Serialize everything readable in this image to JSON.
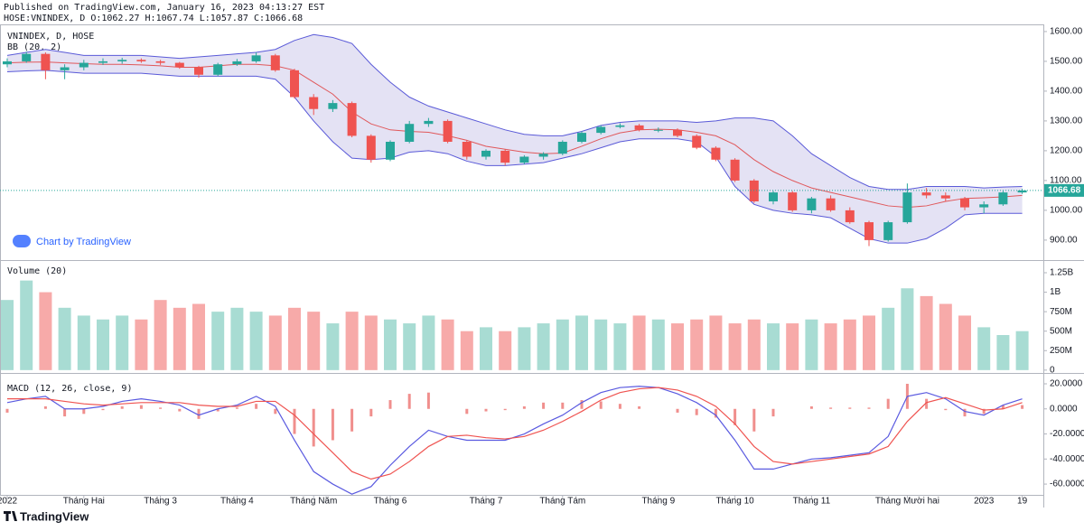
{
  "header": {
    "published": "Published on TradingView.com, January 16, 2023 04:13:27 EST",
    "symbol_line": "HOSE:VNINDEX, D  O:1062.27 H:1067.74 L:1057.87 C:1066.68"
  },
  "watermark": "Chart by TradingView",
  "brand": "TradingView",
  "chart_data": [
    {
      "type": "candlestick",
      "title": "VNINDEX, D, HOSE",
      "categories": [
        "2022",
        null,
        null,
        null,
        "Tháng Hai",
        null,
        null,
        null,
        "Tháng 3",
        null,
        null,
        null,
        "Tháng 4",
        null,
        null,
        null,
        "Tháng Năm",
        null,
        null,
        null,
        "Tháng 6",
        null,
        null,
        null,
        null,
        "Tháng 7",
        null,
        null,
        null,
        "Tháng Tám",
        null,
        null,
        null,
        null,
        "Tháng 9",
        null,
        null,
        null,
        "Tháng 10",
        null,
        null,
        null,
        "Tháng 11",
        null,
        null,
        null,
        null,
        "Tháng Mười hai",
        null,
        null,
        null,
        "2023",
        null,
        "19"
      ],
      "open": [
        1490,
        1500,
        1525,
        1470,
        1480,
        1495,
        1500,
        1505,
        1500,
        1495,
        1480,
        1455,
        1490,
        1500,
        1520,
        1470,
        1380,
        1340,
        1360,
        1250,
        1170,
        1230,
        1290,
        1300,
        1230,
        1180,
        1200,
        1160,
        1180,
        1190,
        1230,
        1260,
        1280,
        1285,
        1270,
        1270,
        1250,
        1210,
        1170,
        1100,
        1030,
        1060,
        1000,
        1040,
        1000,
        960,
        900,
        960,
        1060,
        1050,
        1040,
        1010,
        1020,
        1060
      ],
      "high": [
        1510,
        1532,
        1530,
        1490,
        1505,
        1510,
        1512,
        1510,
        1505,
        1498,
        1485,
        1495,
        1508,
        1530,
        1525,
        1475,
        1390,
        1370,
        1365,
        1255,
        1235,
        1300,
        1310,
        1305,
        1235,
        1205,
        1205,
        1185,
        1195,
        1235,
        1265,
        1285,
        1292,
        1290,
        1278,
        1275,
        1255,
        1215,
        1175,
        1105,
        1065,
        1065,
        1045,
        1050,
        1010,
        965,
        965,
        1090,
        1075,
        1060,
        1045,
        1030,
        1065,
        1072
      ],
      "low": [
        1480,
        1495,
        1440,
        1440,
        1470,
        1488,
        1492,
        1495,
        1488,
        1475,
        1445,
        1450,
        1485,
        1495,
        1465,
        1375,
        1320,
        1330,
        1245,
        1160,
        1165,
        1225,
        1280,
        1225,
        1170,
        1170,
        1150,
        1155,
        1170,
        1185,
        1225,
        1255,
        1275,
        1265,
        1262,
        1245,
        1205,
        1165,
        1095,
        1025,
        1020,
        995,
        990,
        995,
        955,
        880,
        895,
        955,
        1040,
        1030,
        1000,
        990,
        1015,
        1055
      ],
      "close": [
        1500,
        1525,
        1470,
        1480,
        1495,
        1500,
        1505,
        1500,
        1495,
        1480,
        1455,
        1490,
        1500,
        1520,
        1470,
        1380,
        1340,
        1360,
        1250,
        1170,
        1230,
        1290,
        1300,
        1230,
        1180,
        1200,
        1160,
        1180,
        1190,
        1230,
        1260,
        1280,
        1285,
        1270,
        1270,
        1250,
        1210,
        1170,
        1100,
        1030,
        1060,
        1000,
        1040,
        1000,
        960,
        900,
        960,
        1060,
        1050,
        1040,
        1010,
        1020,
        1060,
        1066.68
      ],
      "up_color": "#26a69a",
      "down_color": "#ef5350",
      "overlay": {
        "label": "BB (20, 2)",
        "color": "#5a5ad8",
        "fill": "#e4e2f4",
        "upper": [
          1520,
          1530,
          1540,
          1530,
          1520,
          1520,
          1520,
          1520,
          1515,
          1510,
          1515,
          1520,
          1525,
          1530,
          1540,
          1570,
          1590,
          1580,
          1560,
          1490,
          1430,
          1380,
          1350,
          1330,
          1310,
          1290,
          1270,
          1255,
          1250,
          1250,
          1265,
          1285,
          1295,
          1300,
          1300,
          1300,
          1295,
          1300,
          1310,
          1310,
          1300,
          1250,
          1190,
          1150,
          1110,
          1080,
          1070,
          1070,
          1080,
          1080,
          1080,
          1075,
          1078,
          1080
        ],
        "lower": [
          1465,
          1468,
          1470,
          1465,
          1460,
          1460,
          1460,
          1460,
          1455,
          1450,
          1450,
          1450,
          1450,
          1450,
          1440,
          1380,
          1300,
          1230,
          1175,
          1170,
          1175,
          1195,
          1200,
          1190,
          1165,
          1150,
          1150,
          1155,
          1160,
          1175,
          1190,
          1210,
          1230,
          1240,
          1240,
          1240,
          1230,
          1180,
          1080,
          1020,
          1000,
          990,
          985,
          975,
          940,
          905,
          890,
          890,
          905,
          940,
          985,
          990,
          990,
          990
        ],
        "middle": {
          "color": "#e0585b",
          "values": [
            1495,
            1497,
            1498,
            1495,
            1492,
            1490,
            1490,
            1488,
            1485,
            1480,
            1480,
            1485,
            1490,
            1490,
            1485,
            1470,
            1430,
            1390,
            1330,
            1290,
            1270,
            1265,
            1262,
            1250,
            1235,
            1215,
            1205,
            1195,
            1190,
            1192,
            1215,
            1240,
            1260,
            1270,
            1272,
            1270,
            1262,
            1250,
            1220,
            1170,
            1130,
            1100,
            1075,
            1060,
            1045,
            1030,
            1015,
            1010,
            1015,
            1030,
            1040,
            1042,
            1045,
            1050
          ]
        }
      },
      "last_price": 1066.68,
      "last_price_color": "#26a69a",
      "ylim": [
        836,
        1621
      ],
      "yticks": [
        {
          "value": 1600,
          "label": "1600.00"
        },
        {
          "value": 1500,
          "label": "1500.00"
        },
        {
          "value": 1400,
          "label": "1400.00"
        },
        {
          "value": 1300,
          "label": "1300.00"
        },
        {
          "value": 1200,
          "label": "1200.00"
        },
        {
          "value": 1100,
          "label": "1100.00"
        },
        {
          "value": 1000,
          "label": "1000.00"
        },
        {
          "value": 900,
          "label": "900.00"
        }
      ]
    },
    {
      "type": "bar",
      "title": "Volume (20)",
      "values": [
        900,
        1150,
        1000,
        800,
        700,
        650,
        700,
        650,
        900,
        800,
        850,
        750,
        800,
        750,
        700,
        800,
        750,
        600,
        750,
        700,
        650,
        600,
        700,
        650,
        500,
        550,
        500,
        550,
        600,
        650,
        700,
        650,
        600,
        700,
        650,
        600,
        650,
        700,
        600,
        650,
        600,
        600,
        650,
        600,
        650,
        700,
        800,
        1050,
        950,
        850,
        700,
        550,
        450,
        500
      ],
      "up_color": "#a8dcd3",
      "down_color": "#f7aaa9",
      "ylim": [
        -25,
        1389
      ],
      "yticks": [
        {
          "value": 1250,
          "label": "1.25B"
        },
        {
          "value": 1000,
          "label": "1B"
        },
        {
          "value": 750,
          "label": "750M"
        },
        {
          "value": 500,
          "label": "500M"
        },
        {
          "value": 250,
          "label": "250M"
        },
        0
      ]
    },
    {
      "type": "line",
      "title": "MACD (12, 26, close, 9)",
      "series": [
        {
          "style": "histogram",
          "color": "#f08f8d",
          "values": [
            -3,
            0,
            2,
            -6,
            -4,
            -1,
            2,
            3,
            1,
            -2,
            -8,
            -2,
            1,
            4,
            -4,
            -20,
            -30,
            -25,
            -18,
            -6,
            7,
            12,
            13,
            0,
            -4,
            -2,
            -1,
            2,
            5,
            5,
            7,
            6,
            4,
            2,
            0,
            -3,
            -5,
            -7,
            -13,
            -18,
            -6,
            0,
            2,
            1,
            1,
            1,
            8,
            20,
            8,
            -1,
            -6,
            -4,
            3,
            3
          ]
        },
        {
          "style": "line",
          "color": "#5a5ae0",
          "values": [
            5,
            8,
            10,
            0,
            0,
            2,
            6,
            8,
            6,
            3,
            -5,
            0,
            3,
            10,
            2,
            -25,
            -50,
            -60,
            -68,
            -62,
            -45,
            -30,
            -17,
            -22,
            -25,
            -25,
            -25,
            -20,
            -12,
            -5,
            5,
            13,
            17,
            18,
            17,
            12,
            5,
            -5,
            -25,
            -48,
            -48,
            -44,
            -40,
            -39,
            -37,
            -35,
            -22,
            10,
            13,
            8,
            -2,
            -5,
            3,
            8
          ]
        },
        {
          "style": "line",
          "color": "#ef5350",
          "values": [
            8,
            8,
            8,
            6,
            4,
            3,
            4,
            5,
            5,
            5,
            3,
            2,
            2,
            6,
            6,
            -5,
            -20,
            -35,
            -50,
            -56,
            -52,
            -42,
            -30,
            -22,
            -21,
            -23,
            -24,
            -22,
            -17,
            -10,
            -2,
            7,
            13,
            16,
            17,
            15,
            10,
            2,
            -12,
            -30,
            -42,
            -44,
            -42,
            -40,
            -38,
            -36,
            -30,
            -10,
            5,
            9,
            4,
            -1,
            0,
            5
          ]
        }
      ],
      "ylim": [
        -68.6,
        27.2
      ],
      "yticks": [
        {
          "value": 20,
          "label": "20.0000"
        },
        {
          "value": 0,
          "label": "0.0000"
        },
        {
          "value": -20,
          "label": "-20.0000"
        },
        {
          "value": -40,
          "label": "-40.0000"
        },
        {
          "value": -60,
          "label": "-60.0000"
        }
      ]
    }
  ]
}
